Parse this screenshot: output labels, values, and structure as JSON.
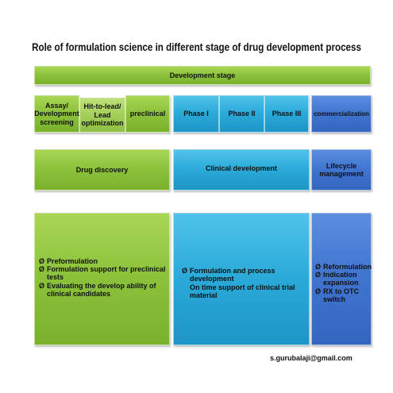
{
  "title": "Role of formulation science  in different stage of drug development process",
  "header": "Development stage",
  "stages": {
    "assay": "Assay/ Development screening",
    "hit_to_lead": "Hit-to-lead/ Lead optimization",
    "preclinical": "preclinical",
    "phase1": "Phase I",
    "phase2": "Phase II",
    "phase3": "Phase III",
    "commercialization": "commercialization"
  },
  "groups": {
    "discovery": "Drug discovery",
    "clinical": "Clinical development",
    "lifecycle": "Lifecycle management"
  },
  "bullet_marker": "Ø",
  "roles": {
    "discovery": [
      "Preformulation",
      "Formulation support for preclinical tests",
      "Evaluating the develop ability of clinical candidates"
    ],
    "clinical": [
      "Formulation and process development",
      "On time support of clinical trial material"
    ],
    "lifecycle": [
      "Reformulation",
      "Indication expansion",
      "RX to OTC switch"
    ]
  },
  "footer_email": "s.gurubalaji@gmail.com",
  "colors": {
    "discovery": "#8dc33c",
    "clinical": "#2aa9d8",
    "lifecycle": "#3f74cf"
  }
}
